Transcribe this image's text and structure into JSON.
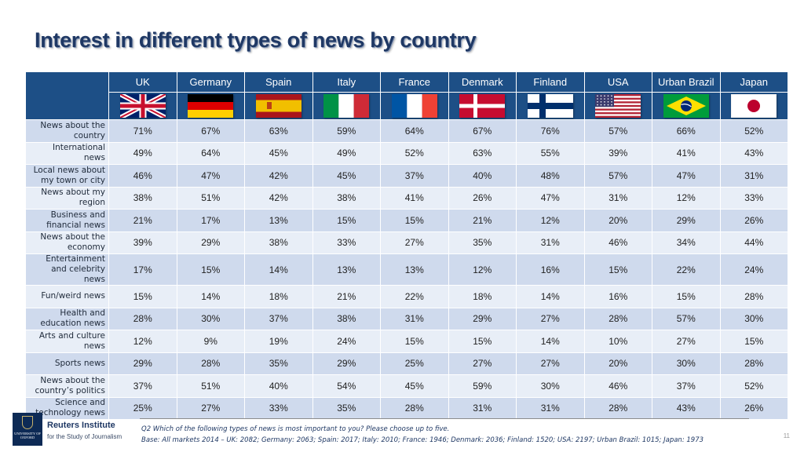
{
  "title": "Interest in different types of news by country",
  "chart_data": {
    "type": "table",
    "title": "Interest in different types of news by country",
    "columns": [
      "UK",
      "Germany",
      "Spain",
      "Italy",
      "France",
      "Denmark",
      "Finland",
      "USA",
      "Urban Brazil",
      "Japan"
    ],
    "flags": [
      "uk-flag-icon",
      "germany-flag-icon",
      "spain-flag-icon",
      "italy-flag-icon",
      "france-flag-icon",
      "denmark-flag-icon",
      "finland-flag-icon",
      "usa-flag-icon",
      "brazil-flag-icon",
      "japan-flag-icon"
    ],
    "rows": [
      {
        "label": "News about the country",
        "values": [
          "71%",
          "67%",
          "63%",
          "59%",
          "64%",
          "67%",
          "76%",
          "57%",
          "66%",
          "52%"
        ]
      },
      {
        "label": "International news",
        "values": [
          "49%",
          "64%",
          "45%",
          "49%",
          "52%",
          "63%",
          "55%",
          "39%",
          "41%",
          "43%"
        ]
      },
      {
        "label": "Local news about my town or city",
        "values": [
          "46%",
          "47%",
          "42%",
          "45%",
          "37%",
          "40%",
          "48%",
          "57%",
          "47%",
          "31%"
        ]
      },
      {
        "label": "News about my region",
        "values": [
          "38%",
          "51%",
          "42%",
          "38%",
          "41%",
          "26%",
          "47%",
          "31%",
          "12%",
          "33%"
        ]
      },
      {
        "label": "Business and financial news",
        "values": [
          "21%",
          "17%",
          "13%",
          "15%",
          "15%",
          "21%",
          "12%",
          "20%",
          "29%",
          "26%"
        ]
      },
      {
        "label": "News about the economy",
        "values": [
          "39%",
          "29%",
          "38%",
          "33%",
          "27%",
          "35%",
          "31%",
          "46%",
          "34%",
          "44%"
        ]
      },
      {
        "label": "Entertainment and celebrity news",
        "values": [
          "17%",
          "15%",
          "14%",
          "13%",
          "13%",
          "12%",
          "16%",
          "15%",
          "22%",
          "24%"
        ]
      },
      {
        "label": "Fun/weird news",
        "values": [
          "15%",
          "14%",
          "18%",
          "21%",
          "22%",
          "18%",
          "14%",
          "16%",
          "15%",
          "28%"
        ]
      },
      {
        "label": "Health and education news",
        "values": [
          "28%",
          "30%",
          "37%",
          "38%",
          "31%",
          "29%",
          "27%",
          "28%",
          "57%",
          "30%"
        ]
      },
      {
        "label": "Arts and culture news",
        "values": [
          "12%",
          "9%",
          "19%",
          "24%",
          "15%",
          "15%",
          "14%",
          "10%",
          "27%",
          "15%"
        ]
      },
      {
        "label": "Sports news",
        "values": [
          "29%",
          "28%",
          "35%",
          "29%",
          "25%",
          "27%",
          "27%",
          "20%",
          "30%",
          "28%"
        ]
      },
      {
        "label": "News about the country’s politics",
        "values": [
          "37%",
          "51%",
          "40%",
          "54%",
          "45%",
          "59%",
          "30%",
          "46%",
          "37%",
          "52%"
        ]
      },
      {
        "label": "Science and technology news",
        "values": [
          "25%",
          "27%",
          "33%",
          "35%",
          "28%",
          "31%",
          "31%",
          "28%",
          "43%",
          "26%"
        ]
      }
    ]
  },
  "footer": {
    "question": "Q2 Which of the following types of news is most important to you? Please choose up to five.",
    "base": "Base: All markets 2014 – UK: 2082; Germany: 2063; Spain: 2017; Italy: 2010; France: 1946; Denmark: 2036; Finland: 1520; USA: 2197; Urban Brazil: 1015; Japan: 1973",
    "page_number": "11"
  },
  "logo": {
    "crest_text": "UNIVERSITY OF OXFORD",
    "name": "Reuters Institute",
    "subtitle": "for the Study of Journalism"
  },
  "colors": {
    "header_bg": "#1d4f86",
    "row_dark": "#cfdaed",
    "row_light": "#e8eef7",
    "title": "#1f3864"
  }
}
